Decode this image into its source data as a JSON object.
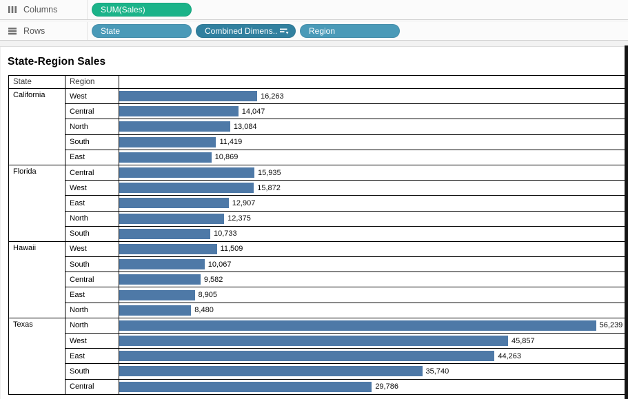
{
  "colors": {
    "measure_pill": "#1bb389",
    "dimension_pill": "#4a9ab8",
    "dimension_pill_dark": "#31809f",
    "bar": "#4e79a7",
    "table_border": "#000000",
    "shelf_bg": "#fbfbfb",
    "right_strip": "#161616"
  },
  "shelves": {
    "columns": {
      "label": "Columns",
      "icon": "columns-icon",
      "pills": [
        {
          "id": "sum-sales",
          "label": "SUM(Sales)",
          "type": "measure",
          "color": "#1bb389",
          "sorted": false
        }
      ]
    },
    "rows": {
      "label": "Rows",
      "icon": "rows-icon",
      "pills": [
        {
          "id": "state",
          "label": "State",
          "type": "dimension",
          "color": "#4a9ab8",
          "sorted": false
        },
        {
          "id": "combined-dimension",
          "label": "Combined Dimens..",
          "type": "dimension",
          "color": "#31809f",
          "sorted": true
        },
        {
          "id": "region",
          "label": "Region",
          "type": "dimension",
          "color": "#4a9ab8",
          "sorted": false
        }
      ]
    }
  },
  "sheet": {
    "title": "State-Region Sales",
    "columns": [
      "State",
      "Region"
    ],
    "axis_max": 59600,
    "groups": [
      {
        "state": "California",
        "rows": [
          {
            "region": "West",
            "value": 16263,
            "label": "16,263"
          },
          {
            "region": "Central",
            "value": 14047,
            "label": "14,047"
          },
          {
            "region": "North",
            "value": 13084,
            "label": "13,084"
          },
          {
            "region": "South",
            "value": 11419,
            "label": "11,419"
          },
          {
            "region": "East",
            "value": 10869,
            "label": "10,869"
          }
        ]
      },
      {
        "state": "Florida",
        "rows": [
          {
            "region": "Central",
            "value": 15935,
            "label": "15,935"
          },
          {
            "region": "West",
            "value": 15872,
            "label": "15,872"
          },
          {
            "region": "East",
            "value": 12907,
            "label": "12,907"
          },
          {
            "region": "North",
            "value": 12375,
            "label": "12,375"
          },
          {
            "region": "South",
            "value": 10733,
            "label": "10,733"
          }
        ]
      },
      {
        "state": "Hawaii",
        "rows": [
          {
            "region": "West",
            "value": 11509,
            "label": "11,509"
          },
          {
            "region": "South",
            "value": 10067,
            "label": "10,067"
          },
          {
            "region": "Central",
            "value": 9582,
            "label": "9,582"
          },
          {
            "region": "East",
            "value": 8905,
            "label": "8,905"
          },
          {
            "region": "North",
            "value": 8480,
            "label": "8,480"
          }
        ]
      },
      {
        "state": "Texas",
        "rows": [
          {
            "region": "North",
            "value": 56239,
            "label": "56,239"
          },
          {
            "region": "West",
            "value": 45857,
            "label": "45,857"
          },
          {
            "region": "East",
            "value": 44263,
            "label": "44,263"
          },
          {
            "region": "South",
            "value": 35740,
            "label": "35,740"
          },
          {
            "region": "Central",
            "value": 29786,
            "label": "29,786"
          }
        ]
      }
    ]
  },
  "chart_data": {
    "type": "bar",
    "orientation": "horizontal",
    "title": "State-Region Sales",
    "value_field": "SUM(Sales)",
    "xlim": [
      0,
      59600
    ],
    "series": [
      {
        "name": "California",
        "categories": [
          "West",
          "Central",
          "North",
          "South",
          "East"
        ],
        "values": [
          16263,
          14047,
          13084,
          11419,
          10869
        ]
      },
      {
        "name": "Florida",
        "categories": [
          "Central",
          "West",
          "East",
          "North",
          "South"
        ],
        "values": [
          15935,
          15872,
          12907,
          12375,
          10733
        ]
      },
      {
        "name": "Hawaii",
        "categories": [
          "West",
          "South",
          "Central",
          "East",
          "North"
        ],
        "values": [
          11509,
          10067,
          9582,
          8905,
          8480
        ]
      },
      {
        "name": "Texas",
        "categories": [
          "North",
          "West",
          "East",
          "South",
          "Central"
        ],
        "values": [
          56239,
          45857,
          44263,
          35740,
          29786
        ]
      }
    ]
  }
}
